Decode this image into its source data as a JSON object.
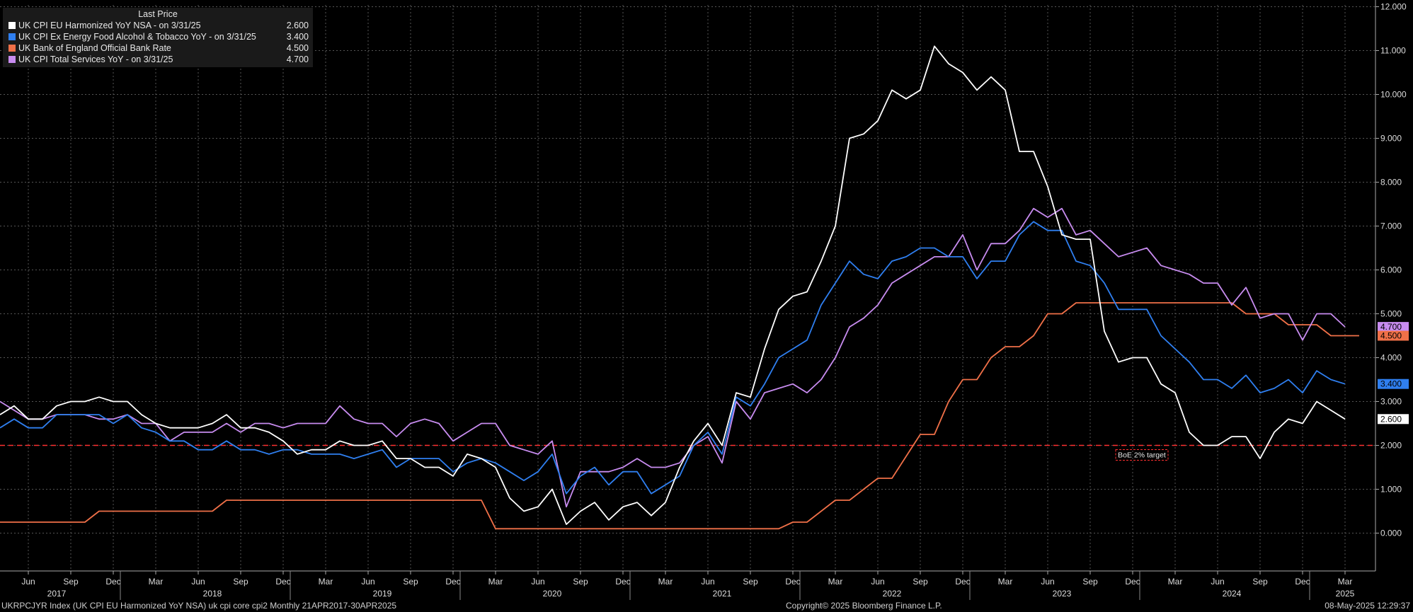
{
  "chart_data": {
    "type": "line",
    "legend": {
      "title": "Last Price",
      "placement": "top-left",
      "entries": [
        {
          "label": "UK CPI EU Harmonized YoY NSA -  on 3/31/25",
          "value": "2.600",
          "color": "#ffffff"
        },
        {
          "label": "UK CPI Ex Energy Food Alcohol & Tobacco YoY -  on 3/31/25",
          "value": "3.400",
          "color": "#2f7ff0"
        },
        {
          "label": "UK Bank of England Official Bank Rate",
          "value": "4.500",
          "color": "#f07048"
        },
        {
          "label": "UK CPI Total Services YoY -  on 3/31/25",
          "value": "4.700",
          "color": "#c88cf0"
        }
      ]
    },
    "ylim": [
      -1,
      12
    ],
    "y_ticks": [
      "0.000",
      "1.000",
      "2.000",
      "3.000",
      "4.000",
      "5.000",
      "6.000",
      "7.000",
      "8.000",
      "9.000",
      "10.000",
      "11.000",
      "12.000"
    ],
    "grid": true,
    "x_start": "2017-04",
    "x_end": "2025-04",
    "month_ticks": [
      {
        "label": "Jun",
        "date": "2017-06"
      },
      {
        "label": "Sep",
        "date": "2017-09"
      },
      {
        "label": "Dec",
        "date": "2017-12"
      },
      {
        "label": "Mar",
        "date": "2018-03"
      },
      {
        "label": "Jun",
        "date": "2018-06"
      },
      {
        "label": "Sep",
        "date": "2018-09"
      },
      {
        "label": "Dec",
        "date": "2018-12"
      },
      {
        "label": "Mar",
        "date": "2019-03"
      },
      {
        "label": "Jun",
        "date": "2019-06"
      },
      {
        "label": "Sep",
        "date": "2019-09"
      },
      {
        "label": "Dec",
        "date": "2019-12"
      },
      {
        "label": "Mar",
        "date": "2020-03"
      },
      {
        "label": "Jun",
        "date": "2020-06"
      },
      {
        "label": "Sep",
        "date": "2020-09"
      },
      {
        "label": "Dec",
        "date": "2020-12"
      },
      {
        "label": "Mar",
        "date": "2021-03"
      },
      {
        "label": "Jun",
        "date": "2021-06"
      },
      {
        "label": "Sep",
        "date": "2021-09"
      },
      {
        "label": "Dec",
        "date": "2021-12"
      },
      {
        "label": "Mar",
        "date": "2022-03"
      },
      {
        "label": "Jun",
        "date": "2022-06"
      },
      {
        "label": "Sep",
        "date": "2022-09"
      },
      {
        "label": "Dec",
        "date": "2022-12"
      },
      {
        "label": "Mar",
        "date": "2023-03"
      },
      {
        "label": "Jun",
        "date": "2023-06"
      },
      {
        "label": "Sep",
        "date": "2023-09"
      },
      {
        "label": "Dec",
        "date": "2023-12"
      },
      {
        "label": "Mar",
        "date": "2024-03"
      },
      {
        "label": "Jun",
        "date": "2024-06"
      },
      {
        "label": "Sep",
        "date": "2024-09"
      },
      {
        "label": "Dec",
        "date": "2024-12"
      },
      {
        "label": "Mar",
        "date": "2025-03"
      }
    ],
    "year_labels": [
      {
        "label": "2017",
        "date": "2017-08"
      },
      {
        "label": "2018",
        "date": "2018-07"
      },
      {
        "label": "2019",
        "date": "2019-07"
      },
      {
        "label": "2020",
        "date": "2020-07"
      },
      {
        "label": "2021",
        "date": "2021-07"
      },
      {
        "label": "2022",
        "date": "2022-07"
      },
      {
        "label": "2023",
        "date": "2023-07"
      },
      {
        "label": "2024",
        "date": "2024-07"
      },
      {
        "label": "2025",
        "date": "2025-03"
      }
    ],
    "year_separators": [
      "2017-12",
      "2018-12",
      "2019-12",
      "2020-12",
      "2021-12",
      "2022-12",
      "2023-12",
      "2024-12"
    ],
    "x": [
      "2017-04",
      "2017-05",
      "2017-06",
      "2017-07",
      "2017-08",
      "2017-09",
      "2017-10",
      "2017-11",
      "2017-12",
      "2018-01",
      "2018-02",
      "2018-03",
      "2018-04",
      "2018-05",
      "2018-06",
      "2018-07",
      "2018-08",
      "2018-09",
      "2018-10",
      "2018-11",
      "2018-12",
      "2019-01",
      "2019-02",
      "2019-03",
      "2019-04",
      "2019-05",
      "2019-06",
      "2019-07",
      "2019-08",
      "2019-09",
      "2019-10",
      "2019-11",
      "2019-12",
      "2020-01",
      "2020-02",
      "2020-03",
      "2020-04",
      "2020-05",
      "2020-06",
      "2020-07",
      "2020-08",
      "2020-09",
      "2020-10",
      "2020-11",
      "2020-12",
      "2021-01",
      "2021-02",
      "2021-03",
      "2021-04",
      "2021-05",
      "2021-06",
      "2021-07",
      "2021-08",
      "2021-09",
      "2021-10",
      "2021-11",
      "2021-12",
      "2022-01",
      "2022-02",
      "2022-03",
      "2022-04",
      "2022-05",
      "2022-06",
      "2022-07",
      "2022-08",
      "2022-09",
      "2022-10",
      "2022-11",
      "2022-12",
      "2023-01",
      "2023-02",
      "2023-03",
      "2023-04",
      "2023-05",
      "2023-06",
      "2023-07",
      "2023-08",
      "2023-09",
      "2023-10",
      "2023-11",
      "2023-12",
      "2024-01",
      "2024-02",
      "2024-03",
      "2024-04",
      "2024-05",
      "2024-06",
      "2024-07",
      "2024-08",
      "2024-09",
      "2024-10",
      "2024-11",
      "2024-12",
      "2025-01",
      "2025-02",
      "2025-03",
      "2025-04"
    ],
    "series": [
      {
        "name": "UK CPI EU Harmonized YoY NSA",
        "color": "#ffffff",
        "last_label": "2.600",
        "values": [
          2.7,
          2.9,
          2.6,
          2.6,
          2.9,
          3.0,
          3.0,
          3.1,
          3.0,
          3.0,
          2.7,
          2.5,
          2.4,
          2.4,
          2.4,
          2.5,
          2.7,
          2.4,
          2.4,
          2.3,
          2.1,
          1.8,
          1.9,
          1.9,
          2.1,
          2.0,
          2.0,
          2.1,
          1.7,
          1.7,
          1.5,
          1.5,
          1.3,
          1.8,
          1.7,
          1.5,
          0.8,
          0.5,
          0.6,
          1.0,
          0.2,
          0.5,
          0.7,
          0.3,
          0.6,
          0.7,
          0.4,
          0.7,
          1.5,
          2.1,
          2.5,
          2.0,
          3.2,
          3.1,
          4.2,
          5.1,
          5.4,
          5.5,
          6.2,
          7.0,
          9.0,
          9.1,
          9.4,
          10.1,
          9.9,
          10.1,
          11.1,
          10.7,
          10.5,
          10.1,
          10.4,
          10.1,
          8.7,
          8.7,
          7.9,
          6.8,
          6.7,
          6.7,
          4.6,
          3.9,
          4.0,
          4.0,
          3.4,
          3.2,
          2.3,
          2.0,
          2.0,
          2.2,
          2.2,
          1.7,
          2.3,
          2.6,
          2.5,
          3.0,
          2.8,
          2.6,
          null
        ]
      },
      {
        "name": "UK CPI Ex Energy Food Alcohol & Tobacco YoY",
        "color": "#2f7ff0",
        "last_label": "3.400",
        "values": [
          2.4,
          2.6,
          2.4,
          2.4,
          2.7,
          2.7,
          2.7,
          2.7,
          2.5,
          2.7,
          2.4,
          2.3,
          2.1,
          2.1,
          1.9,
          1.9,
          2.1,
          1.9,
          1.9,
          1.8,
          1.9,
          1.9,
          1.8,
          1.8,
          1.8,
          1.7,
          1.8,
          1.9,
          1.5,
          1.7,
          1.7,
          1.7,
          1.4,
          1.6,
          1.7,
          1.6,
          1.4,
          1.2,
          1.4,
          1.8,
          0.9,
          1.3,
          1.5,
          1.1,
          1.4,
          1.4,
          0.9,
          1.1,
          1.3,
          2.0,
          2.3,
          1.8,
          3.1,
          2.9,
          3.4,
          4.0,
          4.2,
          4.4,
          5.2,
          5.7,
          6.2,
          5.9,
          5.8,
          6.2,
          6.3,
          6.5,
          6.5,
          6.3,
          6.3,
          5.8,
          6.2,
          6.2,
          6.8,
          7.1,
          6.9,
          6.9,
          6.2,
          6.1,
          5.7,
          5.1,
          5.1,
          5.1,
          4.5,
          4.2,
          3.9,
          3.5,
          3.5,
          3.3,
          3.6,
          3.2,
          3.3,
          3.5,
          3.2,
          3.7,
          3.5,
          3.4,
          null
        ]
      },
      {
        "name": "UK Bank of England Official Bank Rate",
        "color": "#f07048",
        "last_label": "4.500",
        "values": [
          0.25,
          0.25,
          0.25,
          0.25,
          0.25,
          0.25,
          0.25,
          0.5,
          0.5,
          0.5,
          0.5,
          0.5,
          0.5,
          0.5,
          0.5,
          0.5,
          0.75,
          0.75,
          0.75,
          0.75,
          0.75,
          0.75,
          0.75,
          0.75,
          0.75,
          0.75,
          0.75,
          0.75,
          0.75,
          0.75,
          0.75,
          0.75,
          0.75,
          0.75,
          0.75,
          0.1,
          0.1,
          0.1,
          0.1,
          0.1,
          0.1,
          0.1,
          0.1,
          0.1,
          0.1,
          0.1,
          0.1,
          0.1,
          0.1,
          0.1,
          0.1,
          0.1,
          0.1,
          0.1,
          0.1,
          0.1,
          0.25,
          0.25,
          0.5,
          0.75,
          0.75,
          1.0,
          1.25,
          1.25,
          1.75,
          2.25,
          2.25,
          3.0,
          3.5,
          3.5,
          4.0,
          4.25,
          4.25,
          4.5,
          5.0,
          5.0,
          5.25,
          5.25,
          5.25,
          5.25,
          5.25,
          5.25,
          5.25,
          5.25,
          5.25,
          5.25,
          5.25,
          5.25,
          5.0,
          5.0,
          5.0,
          4.75,
          4.75,
          4.75,
          4.5,
          4.5,
          4.5
        ]
      },
      {
        "name": "UK CPI Total Services YoY",
        "color": "#c88cf0",
        "last_label": "4.700",
        "values": [
          3.0,
          2.8,
          2.6,
          2.6,
          2.7,
          2.7,
          2.7,
          2.6,
          2.6,
          2.7,
          2.5,
          2.5,
          2.1,
          2.3,
          2.3,
          2.3,
          2.5,
          2.3,
          2.5,
          2.5,
          2.4,
          2.5,
          2.5,
          2.5,
          2.9,
          2.6,
          2.5,
          2.5,
          2.2,
          2.5,
          2.6,
          2.5,
          2.1,
          2.3,
          2.5,
          2.5,
          2.0,
          1.9,
          1.8,
          2.1,
          0.6,
          1.4,
          1.4,
          1.4,
          1.5,
          1.7,
          1.5,
          1.5,
          1.6,
          2.0,
          2.2,
          1.6,
          3.0,
          2.6,
          3.2,
          3.3,
          3.4,
          3.2,
          3.5,
          4.0,
          4.7,
          4.9,
          5.2,
          5.7,
          5.9,
          6.1,
          6.3,
          6.3,
          6.8,
          6.0,
          6.6,
          6.6,
          6.9,
          7.4,
          7.2,
          7.4,
          6.8,
          6.9,
          6.6,
          6.3,
          6.4,
          6.5,
          6.1,
          6.0,
          5.9,
          5.7,
          5.7,
          5.2,
          5.6,
          4.9,
          5.0,
          5.0,
          4.4,
          5.0,
          5.0,
          4.7,
          null
        ]
      }
    ],
    "reference_line": {
      "value": 2.0,
      "label": "BoE 2% target",
      "color": "#ff3030"
    }
  },
  "footer": {
    "left": "UKRPCJYR Index (UK CPI EU Harmonized YoY NSA) uk cpi core cpi2  Monthly 21APR2017-30APR2025",
    "center": "Copyright© 2025 Bloomberg Finance L.P.",
    "right": "08-May-2025 12:29:37"
  }
}
